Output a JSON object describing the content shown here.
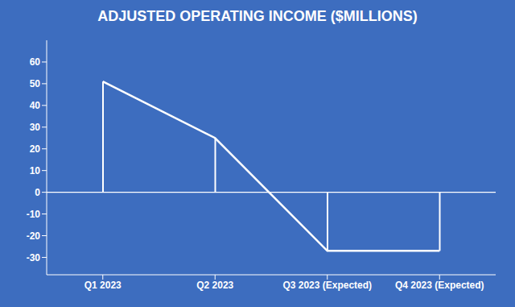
{
  "chart_data": {
    "type": "line",
    "title": "ADJUSTED OPERATING INCOME ($MILLIONS)",
    "categories": [
      "Q1 2023",
      "Q2 2023",
      "Q3 2023 (Expected)",
      "Q4 2023 (Expected)"
    ],
    "values": [
      51,
      25,
      -27,
      -27
    ],
    "color": "#ffffff",
    "ylim": [
      -38,
      70
    ],
    "yticks": [
      -30,
      -20,
      -10,
      0,
      10,
      20,
      30,
      40,
      50,
      60
    ],
    "grid": false
  }
}
